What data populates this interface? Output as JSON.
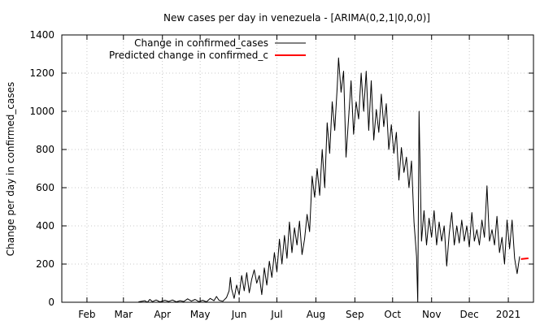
{
  "chart_data": {
    "type": "line",
    "title": "New cases per day in venezuela -  [ARIMA(0,2,1|0,0,0)]",
    "xlabel": "",
    "ylabel": "Change per day in confirmed_cases",
    "ylim": [
      0,
      1400
    ],
    "yticks": [
      0,
      200,
      400,
      600,
      800,
      1000,
      1200,
      1400
    ],
    "xlim": [
      "2020-01-12",
      "2021-01-21"
    ],
    "xticks": [
      {
        "label": "Feb",
        "date": "2020-02-01"
      },
      {
        "label": "Mar",
        "date": "2020-03-01"
      },
      {
        "label": "Apr",
        "date": "2020-04-01"
      },
      {
        "label": "May",
        "date": "2020-05-01"
      },
      {
        "label": "Jun",
        "date": "2020-06-01"
      },
      {
        "label": "Jul",
        "date": "2020-07-01"
      },
      {
        "label": "Aug",
        "date": "2020-08-01"
      },
      {
        "label": "Sep",
        "date": "2020-09-01"
      },
      {
        "label": "Oct",
        "date": "2020-10-01"
      },
      {
        "label": "Nov",
        "date": "2020-11-01"
      },
      {
        "label": "Dec",
        "date": "2020-12-01"
      },
      {
        "label": "2021",
        "date": "2021-01-01"
      }
    ],
    "grid": true,
    "legend_position": "top-left",
    "series": [
      {
        "name": "Change in confirmed_cases",
        "color": "#000000",
        "points": [
          [
            "2020-03-13",
            2
          ],
          [
            "2020-03-18",
            8
          ],
          [
            "2020-03-20",
            0
          ],
          [
            "2020-03-22",
            15
          ],
          [
            "2020-03-24",
            3
          ],
          [
            "2020-03-27",
            12
          ],
          [
            "2020-03-30",
            2
          ],
          [
            "2020-04-03",
            10
          ],
          [
            "2020-04-06",
            4
          ],
          [
            "2020-04-09",
            12
          ],
          [
            "2020-04-12",
            2
          ],
          [
            "2020-04-15",
            8
          ],
          [
            "2020-04-18",
            4
          ],
          [
            "2020-04-21",
            18
          ],
          [
            "2020-04-24",
            6
          ],
          [
            "2020-04-27",
            15
          ],
          [
            "2020-04-30",
            3
          ],
          [
            "2020-05-03",
            10
          ],
          [
            "2020-05-06",
            2
          ],
          [
            "2020-05-09",
            20
          ],
          [
            "2020-05-12",
            8
          ],
          [
            "2020-05-14",
            30
          ],
          [
            "2020-05-16",
            10
          ],
          [
            "2020-05-19",
            5
          ],
          [
            "2020-05-22",
            25
          ],
          [
            "2020-05-24",
            60
          ],
          [
            "2020-05-25",
            130
          ],
          [
            "2020-05-26",
            70
          ],
          [
            "2020-05-28",
            20
          ],
          [
            "2020-05-30",
            90
          ],
          [
            "2020-06-01",
            40
          ],
          [
            "2020-06-03",
            140
          ],
          [
            "2020-06-05",
            60
          ],
          [
            "2020-06-07",
            155
          ],
          [
            "2020-06-09",
            50
          ],
          [
            "2020-06-11",
            120
          ],
          [
            "2020-06-13",
            170
          ],
          [
            "2020-06-15",
            100
          ],
          [
            "2020-06-17",
            140
          ],
          [
            "2020-06-19",
            40
          ],
          [
            "2020-06-21",
            180
          ],
          [
            "2020-06-23",
            90
          ],
          [
            "2020-06-25",
            215
          ],
          [
            "2020-06-27",
            130
          ],
          [
            "2020-06-29",
            260
          ],
          [
            "2020-07-01",
            160
          ],
          [
            "2020-07-03",
            330
          ],
          [
            "2020-07-05",
            200
          ],
          [
            "2020-07-07",
            350
          ],
          [
            "2020-07-09",
            230
          ],
          [
            "2020-07-11",
            420
          ],
          [
            "2020-07-13",
            260
          ],
          [
            "2020-07-15",
            390
          ],
          [
            "2020-07-17",
            300
          ],
          [
            "2020-07-19",
            425
          ],
          [
            "2020-07-21",
            250
          ],
          [
            "2020-07-23",
            330
          ],
          [
            "2020-07-25",
            460
          ],
          [
            "2020-07-27",
            370
          ],
          [
            "2020-07-29",
            660
          ],
          [
            "2020-07-31",
            550
          ],
          [
            "2020-08-02",
            700
          ],
          [
            "2020-08-04",
            560
          ],
          [
            "2020-08-06",
            800
          ],
          [
            "2020-08-08",
            600
          ],
          [
            "2020-08-10",
            940
          ],
          [
            "2020-08-12",
            780
          ],
          [
            "2020-08-14",
            1050
          ],
          [
            "2020-08-16",
            900
          ],
          [
            "2020-08-18",
            1130
          ],
          [
            "2020-08-19",
            1280
          ],
          [
            "2020-08-21",
            1100
          ],
          [
            "2020-08-23",
            1210
          ],
          [
            "2020-08-25",
            760
          ],
          [
            "2020-08-27",
            960
          ],
          [
            "2020-08-29",
            1160
          ],
          [
            "2020-08-31",
            880
          ],
          [
            "2020-09-02",
            1050
          ],
          [
            "2020-09-04",
            960
          ],
          [
            "2020-09-06",
            1200
          ],
          [
            "2020-09-08",
            1000
          ],
          [
            "2020-09-10",
            1210
          ],
          [
            "2020-09-12",
            900
          ],
          [
            "2020-09-14",
            1160
          ],
          [
            "2020-09-16",
            850
          ],
          [
            "2020-09-18",
            1010
          ],
          [
            "2020-09-20",
            890
          ],
          [
            "2020-09-22",
            1090
          ],
          [
            "2020-09-24",
            920
          ],
          [
            "2020-09-26",
            1040
          ],
          [
            "2020-09-28",
            800
          ],
          [
            "2020-09-30",
            930
          ],
          [
            "2020-10-02",
            780
          ],
          [
            "2020-10-04",
            890
          ],
          [
            "2020-10-06",
            640
          ],
          [
            "2020-10-08",
            810
          ],
          [
            "2020-10-10",
            680
          ],
          [
            "2020-10-12",
            760
          ],
          [
            "2020-10-14",
            600
          ],
          [
            "2020-10-16",
            740
          ],
          [
            "2020-10-18",
            420
          ],
          [
            "2020-10-20",
            240
          ],
          [
            "2020-10-21",
            0
          ],
          [
            "2020-10-22",
            1000
          ],
          [
            "2020-10-24",
            320
          ],
          [
            "2020-10-26",
            480
          ],
          [
            "2020-10-28",
            300
          ],
          [
            "2020-10-30",
            440
          ],
          [
            "2020-11-01",
            340
          ],
          [
            "2020-11-03",
            480
          ],
          [
            "2020-11-05",
            300
          ],
          [
            "2020-11-07",
            420
          ],
          [
            "2020-11-09",
            320
          ],
          [
            "2020-11-11",
            400
          ],
          [
            "2020-11-13",
            190
          ],
          [
            "2020-11-15",
            360
          ],
          [
            "2020-11-17",
            470
          ],
          [
            "2020-11-19",
            300
          ],
          [
            "2020-11-21",
            400
          ],
          [
            "2020-11-23",
            310
          ],
          [
            "2020-11-25",
            430
          ],
          [
            "2020-11-27",
            320
          ],
          [
            "2020-11-29",
            400
          ],
          [
            "2020-12-01",
            290
          ],
          [
            "2020-12-03",
            470
          ],
          [
            "2020-12-05",
            320
          ],
          [
            "2020-12-07",
            380
          ],
          [
            "2020-12-09",
            300
          ],
          [
            "2020-12-11",
            430
          ],
          [
            "2020-12-13",
            340
          ],
          [
            "2020-12-15",
            610
          ],
          [
            "2020-12-17",
            320
          ],
          [
            "2020-12-19",
            380
          ],
          [
            "2020-12-21",
            300
          ],
          [
            "2020-12-23",
            450
          ],
          [
            "2020-12-25",
            260
          ],
          [
            "2020-12-27",
            340
          ],
          [
            "2020-12-29",
            200
          ],
          [
            "2020-12-31",
            430
          ],
          [
            "2021-01-02",
            280
          ],
          [
            "2021-01-04",
            430
          ],
          [
            "2021-01-06",
            230
          ],
          [
            "2021-01-08",
            150
          ],
          [
            "2021-01-10",
            240
          ]
        ]
      },
      {
        "name": "Predicted change in confirmed_c",
        "color": "#ff0000",
        "points": [
          [
            "2021-01-11",
            226
          ],
          [
            "2021-01-17",
            230
          ]
        ]
      }
    ]
  }
}
